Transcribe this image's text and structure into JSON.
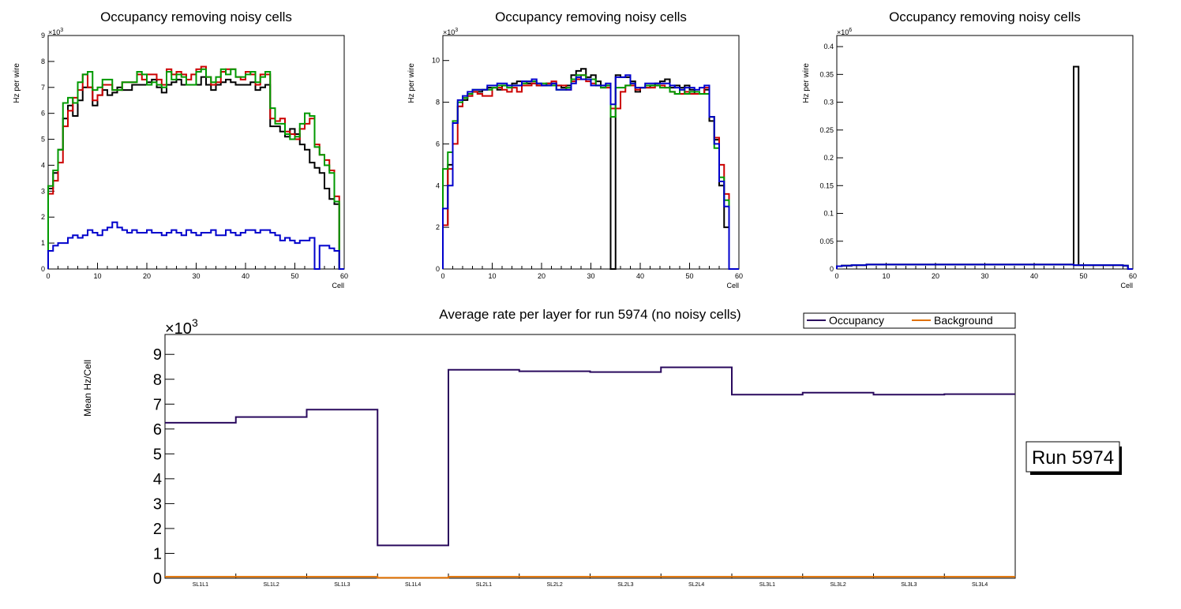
{
  "chart_data": [
    {
      "type": "line",
      "title": "Occupancy removing noisy cells",
      "xlabel": "Cell",
      "ylabel": "Hz per wire",
      "xlim": [
        0,
        60
      ],
      "ylim": [
        0,
        9000
      ],
      "x_ticks": [
        "0",
        "10",
        "20",
        "30",
        "40",
        "50",
        "60"
      ],
      "y_ticks": [
        "0",
        "1",
        "2",
        "3",
        "4",
        "5",
        "6",
        "7",
        "8",
        "9"
      ],
      "y_exponent": "×10",
      "y_exponent_power": "3",
      "series": [
        {
          "name": "black",
          "color": "#000000",
          "values": [
            3100,
            3700,
            4600,
            5800,
            6300,
            5900,
            6500,
            7000,
            7000,
            6300,
            6700,
            6900,
            6700,
            6800,
            7000,
            6900,
            6900,
            7100,
            7100,
            7100,
            7200,
            7300,
            7000,
            6800,
            7100,
            7200,
            7300,
            7100,
            7100,
            7100,
            7100,
            7400,
            7100,
            6900,
            7100,
            7200,
            7300,
            7200,
            7100,
            7100,
            7100,
            7200,
            6900,
            7000,
            7100,
            5500,
            5500,
            5300,
            5100,
            5400,
            5200,
            4800,
            4600,
            4100,
            3900,
            3700,
            3100,
            2700,
            2500,
            0
          ]
        },
        {
          "name": "red",
          "color": "#cc0000",
          "values": [
            2900,
            3400,
            4100,
            5500,
            6100,
            6600,
            6900,
            7500,
            7000,
            6500,
            6700,
            7100,
            7100,
            6900,
            6900,
            7200,
            7200,
            7200,
            7500,
            7300,
            7500,
            7500,
            7300,
            7100,
            7700,
            7500,
            7600,
            7500,
            7300,
            7500,
            7700,
            7800,
            7400,
            7100,
            7200,
            7600,
            7700,
            7700,
            7400,
            7300,
            7600,
            7500,
            7100,
            7500,
            7500,
            5800,
            5700,
            5800,
            5300,
            5200,
            5000,
            5400,
            5600,
            5800,
            4800,
            4400,
            4200,
            3800,
            2800,
            0
          ]
        },
        {
          "name": "green",
          "color": "#009900",
          "values": [
            3200,
            3800,
            4600,
            6400,
            6600,
            6400,
            7200,
            7500,
            7600,
            6900,
            7000,
            7300,
            7300,
            6900,
            6900,
            7200,
            7200,
            7200,
            7600,
            7500,
            7100,
            7200,
            7100,
            7000,
            7600,
            7300,
            7500,
            7400,
            7100,
            7100,
            7600,
            7700,
            7400,
            7200,
            7400,
            7700,
            7500,
            7700,
            7400,
            7400,
            7500,
            7600,
            7200,
            7400,
            7600,
            6200,
            5600,
            5600,
            5200,
            5000,
            5100,
            5600,
            6000,
            5900,
            4700,
            4400,
            4000,
            3700,
            2600,
            0
          ]
        },
        {
          "name": "blue",
          "color": "#0000cc",
          "values": [
            700,
            900,
            1000,
            1000,
            1200,
            1300,
            1200,
            1300,
            1500,
            1400,
            1300,
            1500,
            1600,
            1800,
            1600,
            1500,
            1400,
            1500,
            1400,
            1400,
            1500,
            1400,
            1400,
            1300,
            1400,
            1500,
            1400,
            1300,
            1500,
            1400,
            1300,
            1400,
            1400,
            1500,
            1300,
            1300,
            1500,
            1400,
            1300,
            1400,
            1500,
            1500,
            1400,
            1500,
            1500,
            1400,
            1300,
            1100,
            1200,
            1100,
            1000,
            1100,
            1100,
            1200,
            0,
            900,
            900,
            800,
            700,
            0
          ]
        }
      ]
    },
    {
      "type": "line",
      "title": "Occupancy removing noisy cells",
      "xlabel": "Cell",
      "ylabel": "Hz per wire",
      "xlim": [
        0,
        60
      ],
      "ylim": [
        0,
        11200
      ],
      "x_ticks": [
        "0",
        "10",
        "20",
        "30",
        "40",
        "50",
        "60"
      ],
      "y_ticks": [
        "0",
        "2",
        "4",
        "6",
        "8",
        "10"
      ],
      "y_exponent": "×10",
      "y_exponent_power": "3",
      "series": [
        {
          "name": "black",
          "color": "#000000",
          "values": [
            2100,
            5000,
            7000,
            7800,
            8100,
            8300,
            8500,
            8500,
            8600,
            8700,
            8700,
            8600,
            8800,
            8800,
            8900,
            9000,
            9000,
            8900,
            8900,
            8800,
            8800,
            8900,
            8900,
            8800,
            8700,
            8800,
            9300,
            9500,
            9600,
            9200,
            9300,
            9000,
            8800,
            8800,
            0,
            9300,
            9200,
            9200,
            9000,
            8500,
            8700,
            8700,
            8800,
            8900,
            9000,
            9100,
            8700,
            8800,
            8700,
            8800,
            8600,
            8400,
            8400,
            8600,
            7100,
            6200,
            4000,
            2000,
            0,
            0
          ]
        },
        {
          "name": "red",
          "color": "#cc0000",
          "values": [
            2100,
            4800,
            6000,
            7800,
            8200,
            8300,
            8500,
            8400,
            8300,
            8300,
            8700,
            8700,
            8600,
            8500,
            8700,
            8500,
            8800,
            8800,
            8900,
            8800,
            8800,
            8900,
            9000,
            8800,
            8800,
            8600,
            9000,
            9100,
            9300,
            9000,
            8900,
            8800,
            8700,
            8700,
            7700,
            7700,
            8500,
            8800,
            8800,
            8600,
            8700,
            8700,
            8700,
            8800,
            8800,
            8700,
            8500,
            8400,
            8400,
            8500,
            8400,
            8400,
            8400,
            8700,
            7300,
            6300,
            5000,
            3600,
            0,
            0
          ]
        },
        {
          "name": "green",
          "color": "#009900",
          "values": [
            4800,
            5600,
            7100,
            8000,
            8200,
            8400,
            8600,
            8600,
            8600,
            8600,
            8700,
            8800,
            8800,
            8700,
            8800,
            8800,
            8900,
            9000,
            9000,
            8900,
            8900,
            8800,
            8800,
            8600,
            8600,
            8700,
            9100,
            9300,
            9300,
            9100,
            9100,
            8800,
            8700,
            8800,
            7300,
            8700,
            8700,
            8800,
            8900,
            8700,
            8700,
            8800,
            8800,
            8800,
            8700,
            8700,
            8500,
            8400,
            8600,
            8400,
            8500,
            8500,
            8400,
            8400,
            7300,
            5800,
            4400,
            3300,
            0,
            0
          ]
        },
        {
          "name": "blue",
          "color": "#0000cc",
          "values": [
            2900,
            4000,
            7000,
            8100,
            8300,
            8500,
            8600,
            8600,
            8600,
            8800,
            8800,
            8900,
            8900,
            8800,
            8800,
            8800,
            9000,
            9000,
            9100,
            8900,
            8800,
            8800,
            8900,
            8600,
            8600,
            8600,
            8900,
            9200,
            9100,
            9100,
            8800,
            8800,
            8800,
            8900,
            7900,
            9200,
            9200,
            9300,
            8900,
            8700,
            8700,
            8900,
            8900,
            8900,
            8900,
            8900,
            8800,
            8700,
            8600,
            8700,
            8700,
            8600,
            8700,
            8800,
            7300,
            6000,
            4200,
            3000,
            0,
            0
          ]
        }
      ]
    },
    {
      "type": "line",
      "title": "Occupancy removing noisy cells",
      "xlabel": "Cell",
      "ylabel": "Hz per wire",
      "xlim": [
        0,
        60
      ],
      "ylim": [
        0,
        420000
      ],
      "x_ticks": [
        "0",
        "10",
        "20",
        "30",
        "40",
        "50",
        "60"
      ],
      "y_ticks": [
        "0",
        "0.05",
        "0.1",
        "0.15",
        "0.2",
        "0.25",
        "0.3",
        "0.35",
        "0.4"
      ],
      "y_exponent": "×10",
      "y_exponent_power": "6",
      "series": [
        {
          "name": "black",
          "color": "#000000",
          "values": [
            5000,
            6000,
            6000,
            7000,
            7000,
            7000,
            8000,
            8000,
            8000,
            8000,
            8000,
            8000,
            8000,
            8000,
            8000,
            8000,
            8000,
            8000,
            8000,
            8000,
            8000,
            8000,
            8000,
            8000,
            8000,
            8000,
            8000,
            8000,
            8000,
            8000,
            8000,
            8000,
            8000,
            8000,
            8000,
            8000,
            8000,
            8000,
            8000,
            8000,
            8000,
            8000,
            8000,
            8000,
            8000,
            8000,
            8000,
            8000,
            364000,
            7000,
            7000,
            7000,
            7000,
            7000,
            7000,
            7000,
            7000,
            7000,
            6000,
            0
          ]
        },
        {
          "name": "red",
          "color": "#cc0000",
          "values": [
            5000,
            6000,
            6000,
            7000,
            7000,
            7000,
            8000,
            8000,
            8000,
            8000,
            8000,
            8000,
            8000,
            8000,
            8000,
            8000,
            8000,
            8000,
            8000,
            8000,
            8000,
            8000,
            8000,
            8000,
            8000,
            8000,
            8000,
            8000,
            8000,
            8000,
            8000,
            8000,
            8000,
            8000,
            8000,
            8000,
            8000,
            8000,
            8000,
            8000,
            8000,
            8000,
            8000,
            8000,
            8000,
            8000,
            8000,
            8000,
            7000,
            7000,
            7000,
            7000,
            7000,
            7000,
            7000,
            7000,
            7000,
            7000,
            6000,
            0
          ]
        },
        {
          "name": "green",
          "color": "#009900",
          "values": [
            5000,
            6000,
            6000,
            7000,
            7000,
            7000,
            8000,
            8000,
            8000,
            8000,
            8000,
            8000,
            8000,
            8000,
            8000,
            8000,
            8000,
            8000,
            8000,
            8000,
            8000,
            8000,
            8000,
            8000,
            8000,
            8000,
            8000,
            8000,
            8000,
            8000,
            8000,
            8000,
            8000,
            8000,
            8000,
            8000,
            8000,
            8000,
            8000,
            8000,
            8000,
            8000,
            8000,
            8000,
            8000,
            8000,
            8000,
            8000,
            7000,
            7000,
            7000,
            7000,
            7000,
            7000,
            7000,
            7000,
            7000,
            7000,
            6000,
            0
          ]
        },
        {
          "name": "blue",
          "color": "#0000cc",
          "values": [
            5000,
            6000,
            6000,
            7000,
            7000,
            7000,
            8000,
            8000,
            8000,
            8000,
            8000,
            8000,
            8000,
            8000,
            8000,
            8000,
            8000,
            8000,
            8000,
            8000,
            8000,
            8000,
            8000,
            8000,
            8000,
            8000,
            8000,
            8000,
            8000,
            8000,
            8000,
            8000,
            8000,
            8000,
            8000,
            8000,
            8000,
            8000,
            8000,
            8000,
            8000,
            8000,
            8000,
            8000,
            8000,
            8000,
            8000,
            8000,
            7000,
            7000,
            7000,
            7000,
            7000,
            7000,
            7000,
            7000,
            7000,
            7000,
            6000,
            0
          ]
        }
      ]
    },
    {
      "type": "line",
      "title": "Average rate per layer for run 5974 (no noisy cells)",
      "xlabel": "",
      "ylabel": "Mean Hz/Cell",
      "ylim": [
        0,
        9800
      ],
      "categories": [
        "SL1L1",
        "SL1L2",
        "SL1L3",
        "SL1L4",
        "SL2L1",
        "SL2L2",
        "SL2L3",
        "SL2L4",
        "SL3L1",
        "SL3L2",
        "SL3L3",
        "SL3L4"
      ],
      "y_ticks": [
        "0",
        "1",
        "2",
        "3",
        "4",
        "5",
        "6",
        "7",
        "8",
        "9"
      ],
      "y_exponent": "×10",
      "y_exponent_power": "3",
      "legend_position": "top-right",
      "series": [
        {
          "name": "Occupancy",
          "color": "#2a0a5e",
          "values": [
            6250,
            6480,
            6780,
            1320,
            8380,
            8320,
            8290,
            8480,
            7380,
            7460,
            7380,
            7400
          ]
        },
        {
          "name": "Background",
          "color": "#e07000",
          "values": [
            60,
            60,
            60,
            20,
            60,
            60,
            60,
            60,
            60,
            60,
            60,
            60
          ]
        }
      ]
    }
  ],
  "run_label": "Run 5974"
}
